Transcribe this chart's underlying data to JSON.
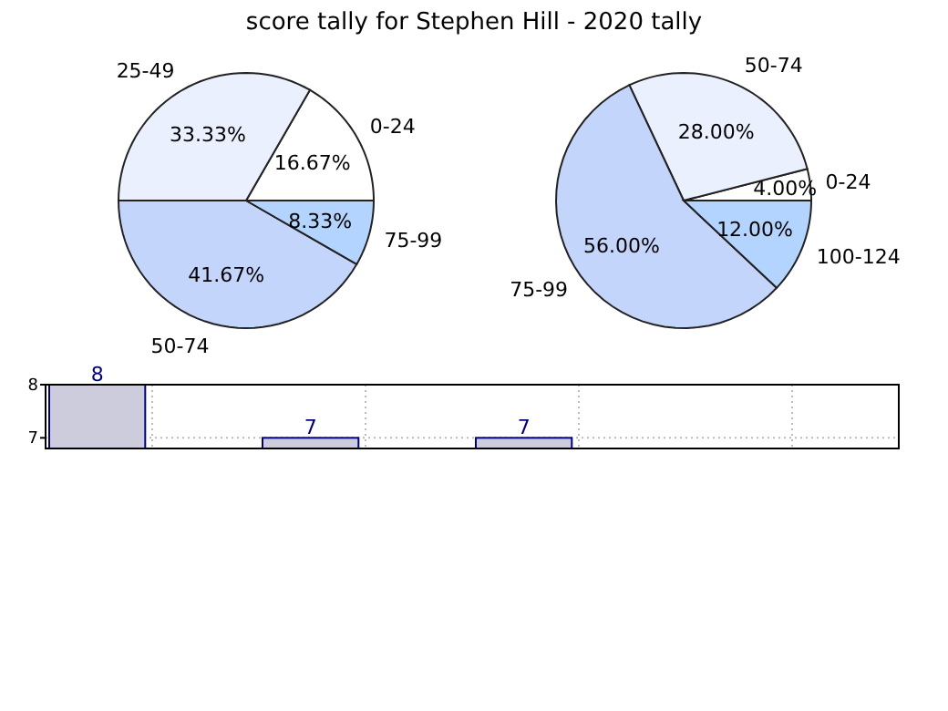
{
  "chart_data": [
    {
      "type": "pie",
      "title": "score tally for Stephen Hill - 2020 tally",
      "categories": [
        "0-24",
        "25-49",
        "50-74",
        "75-99"
      ],
      "values": [
        16.67,
        33.33,
        41.67,
        8.33
      ],
      "value_labels": [
        "16.67%",
        "33.33%",
        "41.67%",
        "8.33%"
      ],
      "colors": [
        "#ffffff",
        "#eaf0fe",
        "#c4d5fb",
        "#b3d4ff"
      ]
    },
    {
      "type": "pie",
      "categories": [
        "0-24",
        "50-74",
        "75-99",
        "100-124"
      ],
      "values": [
        4,
        28,
        56,
        12
      ],
      "value_labels": [
        "4.00%",
        "28.00%",
        "56.00%",
        "12.00%"
      ],
      "colors": [
        "#ffffff",
        "#eaf0fe",
        "#c4d5fb",
        "#b3d4ff"
      ]
    },
    {
      "type": "bar",
      "categories": [
        null,
        null,
        null,
        null
      ],
      "values": [
        8,
        7,
        7,
        null
      ],
      "color": "#ccccdd",
      "data_labels": true,
      "ylim": [
        6.8,
        8
      ],
      "yticks": [
        7,
        8
      ],
      "grid": true
    }
  ]
}
